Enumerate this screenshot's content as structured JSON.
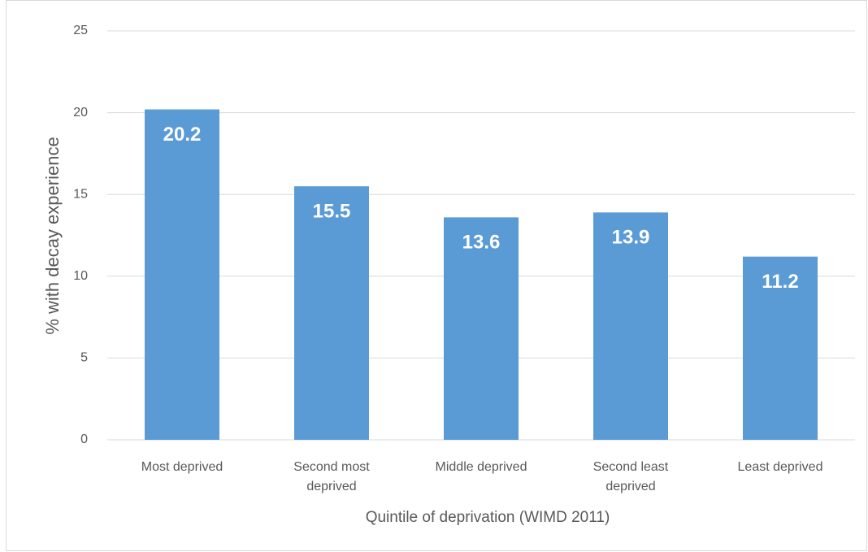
{
  "chart_data": {
    "type": "bar",
    "xlabel": "Quintile of deprivation (WIMD 2011)",
    "ylabel": "% with decay experience",
    "categories": [
      "Most deprived",
      "Second most deprived",
      "Middle deprived",
      "Second least deprived",
      "Least deprived"
    ],
    "values": [
      20.2,
      15.5,
      13.6,
      13.9,
      11.2
    ],
    "color": "#5b9bd5",
    "ylim": [
      0,
      25
    ],
    "yticks": [
      0,
      5,
      10,
      15,
      20,
      25
    ],
    "grid": true
  }
}
